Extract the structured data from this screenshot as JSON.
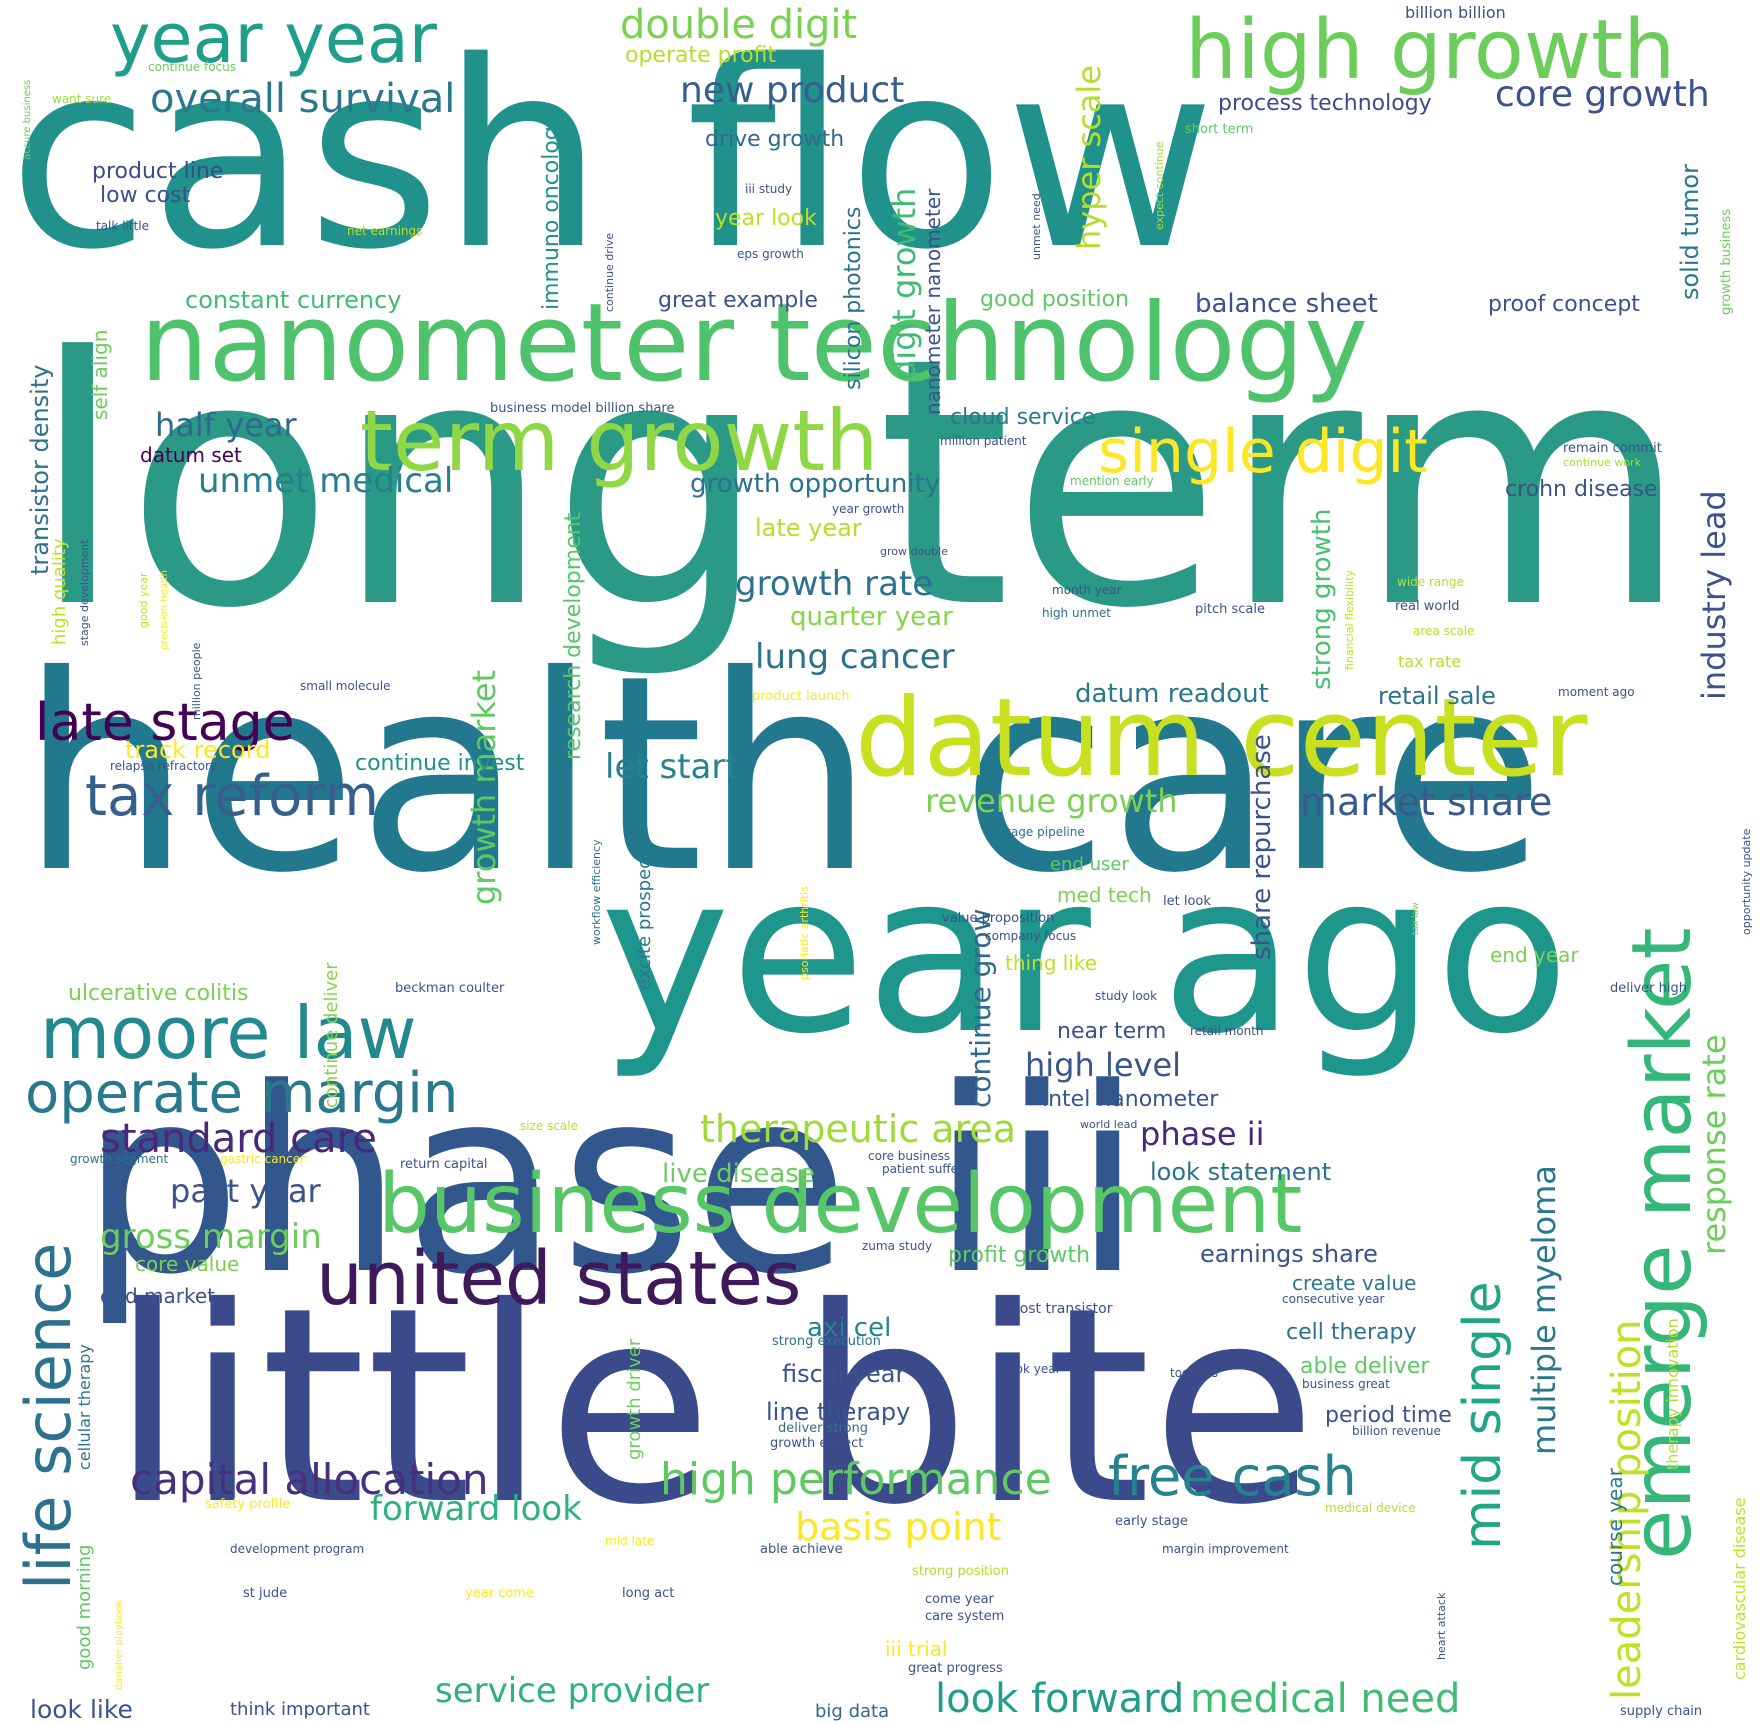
{
  "words": [
    {
      "id": "cash-flow",
      "text": "cash flow",
      "color": "#21918c"
    },
    {
      "id": "long-term",
      "text": "long term",
      "color": "#2a9a87"
    },
    {
      "id": "health-care",
      "text": "health care",
      "color": "#22798e"
    },
    {
      "id": "phase-iii",
      "text": "phase iii",
      "color": "#31578d"
    },
    {
      "id": "little-bite",
      "text": "little bite",
      "color": "#3b4a8a"
    },
    {
      "id": "year-ago",
      "text": "year ago",
      "color": "#1f968b"
    },
    {
      "id": "nanometer-technology",
      "text": "nanometer technology",
      "color": "#4ec36b"
    },
    {
      "id": "datum-center",
      "text": "datum center",
      "color": "#c8e020"
    },
    {
      "id": "high-growth",
      "text": "high growth",
      "color": "#6ccd5a"
    },
    {
      "id": "term-growth",
      "text": "term growth",
      "color": "#8fd744"
    },
    {
      "id": "year-year",
      "text": "year year",
      "color": "#1f9e89"
    },
    {
      "id": "single-digit",
      "text": "single digit",
      "color": "#fde725"
    },
    {
      "id": "business-development",
      "text": "business development",
      "color": "#56c667"
    },
    {
      "id": "united-states",
      "text": "united states",
      "color": "#3e1a5b"
    },
    {
      "id": "moore-law",
      "text": "moore law",
      "color": "#23898e"
    },
    {
      "id": "operate-margin",
      "text": "operate margin",
      "color": "#2a788e"
    },
    {
      "id": "emerge-market",
      "text": "emerge market",
      "color": "#35b779"
    },
    {
      "id": "late-stage",
      "text": "late stage",
      "color": "#440154"
    },
    {
      "id": "tax-reform",
      "text": "tax reform",
      "color": "#355f8d"
    },
    {
      "id": "life-science",
      "text": "life science",
      "color": "#2c728e"
    },
    {
      "id": "free-cash",
      "text": "free cash",
      "color": "#26828e"
    },
    {
      "id": "capital-allocation",
      "text": "capital allocation",
      "color": "#46307e"
    },
    {
      "id": "high-performance",
      "text": "high performance",
      "color": "#5ec962"
    },
    {
      "id": "mid-single",
      "text": "mid single",
      "color": "#21a685"
    },
    {
      "id": "double-digit",
      "text": "double digit",
      "color": "#7ad151"
    },
    {
      "id": "overall-survival",
      "text": "overall survival",
      "color": "#2a788e"
    },
    {
      "id": "new-product",
      "text": "new product",
      "color": "#355f8d"
    },
    {
      "id": "core-growth",
      "text": "core growth",
      "color": "#3b528b"
    },
    {
      "id": "standard-care",
      "text": "standard care",
      "color": "#482878"
    },
    {
      "id": "look-forward",
      "text": "look forward",
      "color": "#1f9e89"
    },
    {
      "id": "medical-need",
      "text": "medical need",
      "color": "#3fbc73"
    },
    {
      "id": "service-provider",
      "text": "service provider",
      "color": "#2db27d"
    },
    {
      "id": "look-like",
      "text": "look like",
      "color": "#3b528b"
    },
    {
      "id": "half-year",
      "text": "half year",
      "color": "#31688e"
    },
    {
      "id": "unmet-medical",
      "text": "unmet medical",
      "color": "#277f8e"
    },
    {
      "id": "growth-rate",
      "text": "growth rate",
      "color": "#2c728e"
    },
    {
      "id": "lung-cancer",
      "text": "lung cancer",
      "color": "#2c728e"
    },
    {
      "id": "market-share",
      "text": "market share",
      "color": "#38598c"
    },
    {
      "id": "revenue-growth",
      "text": "revenue growth",
      "color": "#7ad151"
    },
    {
      "id": "let-start",
      "text": "let start",
      "color": "#26828e"
    },
    {
      "id": "therapeutic-area",
      "text": "therapeutic area",
      "color": "#a0da39"
    },
    {
      "id": "phase-ii",
      "text": "phase ii",
      "color": "#482878"
    },
    {
      "id": "high-level",
      "text": "high level",
      "color": "#39568c"
    },
    {
      "id": "past-year",
      "text": "past year",
      "color": "#3b528b"
    },
    {
      "id": "gross-margin",
      "text": "gross margin",
      "color": "#6ccd5a"
    },
    {
      "id": "forward-look",
      "text": "forward look",
      "color": "#2db27d"
    },
    {
      "id": "basis-point",
      "text": "basis point",
      "color": "#fde725"
    },
    {
      "id": "leadership-position",
      "text": "leadership position",
      "color": "#c2df23"
    },
    {
      "id": "multiple-myeloma",
      "text": "multiple myeloma",
      "color": "#2a788e"
    },
    {
      "id": "response-rate",
      "text": "response rate",
      "color": "#6ccd5a"
    },
    {
      "id": "industry-lead",
      "text": "industry lead",
      "color": "#3b528b"
    },
    {
      "id": "hyper-scale",
      "text": "hyper scale",
      "color": "#b5de2b"
    },
    {
      "id": "digit-growth",
      "text": "digit growth",
      "color": "#3fbc73"
    },
    {
      "id": "growth-market",
      "text": "growth market",
      "color": "#5ec962"
    },
    {
      "id": "immuno-oncology",
      "text": "immuno oncology",
      "color": "#21918c"
    },
    {
      "id": "silicon-photonics",
      "text": "silicon photonics",
      "color": "#2c728e"
    },
    {
      "id": "constant-currency",
      "text": "constant currency",
      "color": "#3fbc73"
    },
    {
      "id": "transistor-density",
      "text": "transistor density",
      "color": "#2c728e"
    },
    {
      "id": "continue-grow",
      "text": "continue grow",
      "color": "#31688e"
    },
    {
      "id": "share-repurchase",
      "text": "share repurchase",
      "color": "#3b528b"
    },
    {
      "id": "strong-growth",
      "text": "strong growth",
      "color": "#4ac16d"
    },
    {
      "id": "research-development",
      "text": "research development",
      "color": "#56c667"
    },
    {
      "id": "growth-opportunity",
      "text": "growth opportunity",
      "color": "#2c728e"
    },
    {
      "id": "balance-sheet",
      "text": "balance sheet",
      "color": "#3b528b"
    },
    {
      "id": "process-technology",
      "text": "process technology",
      "color": "#3e4a89"
    },
    {
      "id": "datum-readout",
      "text": "datum readout",
      "color": "#2a788e"
    },
    {
      "id": "retail-sale",
      "text": "retail sale",
      "color": "#2c728e"
    },
    {
      "id": "crohn-disease",
      "text": "crohn disease",
      "color": "#3b528b"
    },
    {
      "id": "quarter-year",
      "text": "quarter year",
      "color": "#86d549"
    },
    {
      "id": "late-year",
      "text": "late year",
      "color": "#b5de2b"
    },
    {
      "id": "cloud-service",
      "text": "cloud service",
      "color": "#2a788e"
    },
    {
      "id": "drive-growth",
      "text": "drive growth",
      "color": "#31688e"
    },
    {
      "id": "great-example",
      "text": "great example",
      "color": "#3b528b"
    },
    {
      "id": "good-position",
      "text": "good position",
      "color": "#5ec962"
    },
    {
      "id": "proof-concept",
      "text": "proof concept",
      "color": "#3b528b"
    },
    {
      "id": "solid-tumor",
      "text": "solid tumor",
      "color": "#2a788e"
    },
    {
      "id": "product-line",
      "text": "product line",
      "color": "#3e4a89"
    },
    {
      "id": "low-cost",
      "text": "low cost",
      "color": "#3b528b"
    },
    {
      "id": "year-look",
      "text": "year look",
      "color": "#c2df23"
    },
    {
      "id": "operate-profit",
      "text": "operate profit",
      "color": "#b5de2b"
    },
    {
      "id": "nanometer-nanometer",
      "text": "nanometer nanometer",
      "color": "#3b528b"
    },
    {
      "id": "earnings-share",
      "text": "earnings share",
      "color": "#3b528b"
    },
    {
      "id": "look-statement",
      "text": "look statement",
      "color": "#2c728e"
    },
    {
      "id": "intel-nanometer",
      "text": "intel nanometer",
      "color": "#39568c"
    },
    {
      "id": "near-term",
      "text": "near term",
      "color": "#3b528b"
    },
    {
      "id": "live-disease",
      "text": "live disease",
      "color": "#6ccd5a"
    },
    {
      "id": "profit-growth",
      "text": "profit growth",
      "color": "#5ec962"
    },
    {
      "id": "cell-therapy",
      "text": "cell therapy",
      "color": "#2c728e"
    },
    {
      "id": "able-deliver",
      "text": "able deliver",
      "color": "#5ec962"
    },
    {
      "id": "period-time",
      "text": "period time",
      "color": "#3b528b"
    },
    {
      "id": "fiscal-year",
      "text": "fiscal year",
      "color": "#3b528b"
    },
    {
      "id": "line-therapy",
      "text": "line therapy",
      "color": "#39568c"
    },
    {
      "id": "axi-cel",
      "text": "axi cel",
      "color": "#26828e"
    },
    {
      "id": "create-value",
      "text": "create value",
      "color": "#2a788e"
    },
    {
      "id": "continue-invest",
      "text": "continue invest",
      "color": "#21918c"
    },
    {
      "id": "track-record",
      "text": "track record",
      "color": "#fde725"
    },
    {
      "id": "ulcerative-colitis",
      "text": "ulcerative colitis",
      "color": "#7ad151"
    },
    {
      "id": "core-value",
      "text": "core value",
      "color": "#7ad151"
    },
    {
      "id": "end-market",
      "text": "end market",
      "color": "#3b528b"
    },
    {
      "id": "datum-set",
      "text": "datum set",
      "color": "#440154"
    },
    {
      "id": "self-align",
      "text": "self align",
      "color": "#6ccd5a"
    },
    {
      "id": "high-quality",
      "text": "high quality",
      "color": "#c2df23"
    },
    {
      "id": "end-user",
      "text": "end user",
      "color": "#5ec962"
    },
    {
      "id": "med-tech",
      "text": "med tech",
      "color": "#7ad151"
    },
    {
      "id": "thing-like",
      "text": "thing like",
      "color": "#c2df23"
    },
    {
      "id": "end-year",
      "text": "end year",
      "color": "#7ad151"
    },
    {
      "id": "continue-deliver",
      "text": "continue deliver",
      "color": "#86d549"
    },
    {
      "id": "excite-prospect",
      "text": "excite prospect",
      "color": "#2a788e"
    },
    {
      "id": "growth-driver",
      "text": "growth driver",
      "color": "#6ccd5a"
    },
    {
      "id": "course-year",
      "text": "course year",
      "color": "#2a788e"
    },
    {
      "id": "therapy-innovation",
      "text": "therapy innovation",
      "color": "#b5de2b"
    },
    {
      "id": "cardiovascular-disease",
      "text": "cardiovascular disease",
      "color": "#c2df23"
    },
    {
      "id": "good-morning",
      "text": "good morning",
      "color": "#5ec962"
    },
    {
      "id": "cellular-therapy",
      "text": "cellular therapy",
      "color": "#2c728e"
    },
    {
      "id": "big-data",
      "text": "big data",
      "color": "#31688e"
    },
    {
      "id": "think-important",
      "text": "think important",
      "color": "#3b528b"
    },
    {
      "id": "iii-trial",
      "text": "iii trial",
      "color": "#fde725"
    },
    {
      "id": "continue-focus",
      "text": "continue focus",
      "color": "#6ccd5a"
    },
    {
      "id": "want-sure",
      "text": "want sure",
      "color": "#a0da39"
    },
    {
      "id": "accure-business",
      "text": "accure business",
      "color": "#6ccd5a"
    },
    {
      "id": "talk-little",
      "text": "talk little",
      "color": "#3b528b"
    },
    {
      "id": "net-earnings",
      "text": "net earnings",
      "color": "#b5de2b"
    },
    {
      "id": "continue-drive",
      "text": "continue drive",
      "color": "#3b528b"
    },
    {
      "id": "iii-study",
      "text": "iii study",
      "color": "#3b528b"
    },
    {
      "id": "eps-growth",
      "text": "eps growth",
      "color": "#39568c"
    },
    {
      "id": "billion-billion",
      "text": "billion billion",
      "color": "#3b528b"
    },
    {
      "id": "short-term",
      "text": "short term",
      "color": "#5ec962"
    },
    {
      "id": "unmet-need",
      "text": "unmet need",
      "color": "#3b528b"
    },
    {
      "id": "expect-continue",
      "text": "expect continue",
      "color": "#a0da39"
    },
    {
      "id": "growth-business",
      "text": "growth business",
      "color": "#6ccd5a"
    },
    {
      "id": "business-model-billion-share",
      "text": "business model billion share",
      "color": "#3b528b"
    },
    {
      "id": "million-patient",
      "text": "million patient",
      "color": "#3b528b"
    },
    {
      "id": "remain-commit",
      "text": "remain commit",
      "color": "#3b528b"
    },
    {
      "id": "continue-work",
      "text": "continue work",
      "color": "#a0da39"
    },
    {
      "id": "mention-early",
      "text": "mention early",
      "color": "#5ec962"
    },
    {
      "id": "year-growth",
      "text": "year growth",
      "color": "#3b528b"
    },
    {
      "id": "grow-double",
      "text": "grow double",
      "color": "#3b528b"
    },
    {
      "id": "month-year",
      "text": "month year",
      "color": "#3b528b"
    },
    {
      "id": "high-unmet",
      "text": "high unmet",
      "color": "#2c728e"
    },
    {
      "id": "pitch-scale",
      "text": "pitch scale",
      "color": "#3b528b"
    },
    {
      "id": "real-world",
      "text": "real world",
      "color": "#3b528b"
    },
    {
      "id": "wide-range",
      "text": "wide range",
      "color": "#b5de2b"
    },
    {
      "id": "area-scale",
      "text": "area scale",
      "color": "#b5de2b"
    },
    {
      "id": "tax-rate",
      "text": "tax rate",
      "color": "#b5de2b"
    },
    {
      "id": "financial-flexibility",
      "text": "financial flexibility",
      "color": "#c2df23"
    },
    {
      "id": "precision-health",
      "text": "precision health",
      "color": "#fde725"
    },
    {
      "id": "good-year",
      "text": "good year",
      "color": "#c2df23"
    },
    {
      "id": "stage-development",
      "text": "stage development",
      "color": "#3b528b"
    },
    {
      "id": "million-people",
      "text": "million people",
      "color": "#3b528b"
    },
    {
      "id": "small-molecule",
      "text": "small molecule",
      "color": "#3b528b"
    },
    {
      "id": "relapse-refractory",
      "text": "relapse refractory",
      "color": "#3b528b"
    },
    {
      "id": "product-launch",
      "text": "product launch",
      "color": "#fde725"
    },
    {
      "id": "moment-ago",
      "text": "moment ago",
      "color": "#3b528b"
    },
    {
      "id": "stage-pipeline",
      "text": "stage pipeline",
      "color": "#2c728e"
    },
    {
      "id": "let-look",
      "text": "let look",
      "color": "#3b528b"
    },
    {
      "id": "value-proposition",
      "text": "value proposition",
      "color": "#3b528b"
    },
    {
      "id": "company-focus",
      "text": "company focus",
      "color": "#3b528b"
    },
    {
      "id": "workflow-efficiency",
      "text": "workflow efficiency",
      "color": "#2c728e"
    },
    {
      "id": "psoriatic-arthritis",
      "text": "psoriatic arthritis",
      "color": "#fde725"
    },
    {
      "id": "tax-law",
      "text": "tax law",
      "color": "#7ad151"
    },
    {
      "id": "opportunity-update",
      "text": "opportunity update",
      "color": "#3b528b"
    },
    {
      "id": "beckman-coulter",
      "text": "beckman coulter",
      "color": "#3b528b"
    },
    {
      "id": "study-look",
      "text": "study look",
      "color": "#3b528b"
    },
    {
      "id": "retail-month",
      "text": "retail month",
      "color": "#3b528b"
    },
    {
      "id": "deliver-high",
      "text": "deliver high",
      "color": "#3b528b"
    },
    {
      "id": "world-lead",
      "text": "world lead",
      "color": "#3b528b"
    },
    {
      "id": "size-scale",
      "text": "size scale",
      "color": "#b5de2b"
    },
    {
      "id": "growth-segment",
      "text": "growth segment",
      "color": "#2c728e"
    },
    {
      "id": "gastric-cancer",
      "text": "gastric cancer",
      "color": "#fde725"
    },
    {
      "id": "return-capital",
      "text": "return capital",
      "color": "#3b528b"
    },
    {
      "id": "core-business",
      "text": "core business",
      "color": "#3b528b"
    },
    {
      "id": "patient-suffer",
      "text": "patient suffer",
      "color": "#3b528b"
    },
    {
      "id": "zuma-study",
      "text": "zuma study",
      "color": "#3b528b"
    },
    {
      "id": "consecutive-year",
      "text": "consecutive year",
      "color": "#3b528b"
    },
    {
      "id": "cost-transistor",
      "text": "cost transistor",
      "color": "#3b528b"
    },
    {
      "id": "strong-execution",
      "text": "strong execution",
      "color": "#2c728e"
    },
    {
      "id": "look-year",
      "text": "look year",
      "color": "#3b528b"
    },
    {
      "id": "tool-dbs",
      "text": "tool dbs",
      "color": "#3b528b"
    },
    {
      "id": "business-great",
      "text": "business great",
      "color": "#3b528b"
    },
    {
      "id": "deliver-strong",
      "text": "deliver strong",
      "color": "#2c728e"
    },
    {
      "id": "growth-expect",
      "text": "growth expect",
      "color": "#3b528b"
    },
    {
      "id": "billion-revenue",
      "text": "billion revenue",
      "color": "#3b528b"
    },
    {
      "id": "safety-profile",
      "text": "safety profile",
      "color": "#fde725"
    },
    {
      "id": "development-program",
      "text": "development program",
      "color": "#3b528b"
    },
    {
      "id": "mid-late",
      "text": "mid late",
      "color": "#fde725"
    },
    {
      "id": "able-achieve",
      "text": "able achieve",
      "color": "#3b528b"
    },
    {
      "id": "early-stage",
      "text": "early stage",
      "color": "#3b528b"
    },
    {
      "id": "medical-device",
      "text": "medical device",
      "color": "#b5de2b"
    },
    {
      "id": "margin-improvement",
      "text": "margin improvement",
      "color": "#3b528b"
    },
    {
      "id": "strong-position",
      "text": "strong position",
      "color": "#b5de2b"
    },
    {
      "id": "heart-attack",
      "text": "heart attack",
      "color": "#3b528b"
    },
    {
      "id": "danaher-playbook",
      "text": "danaher playbook",
      "color": "#fde725"
    },
    {
      "id": "st-jude",
      "text": "st jude",
      "color": "#3b528b"
    },
    {
      "id": "year-come",
      "text": "year come",
      "color": "#fde725"
    },
    {
      "id": "long-act",
      "text": "long act",
      "color": "#3b528b"
    },
    {
      "id": "come-year",
      "text": "come year",
      "color": "#3b528b"
    },
    {
      "id": "care-system",
      "text": "care system",
      "color": "#3b528b"
    },
    {
      "id": "great-progress",
      "text": "great progress",
      "color": "#3b528b"
    },
    {
      "id": "supply-chain",
      "text": "supply chain",
      "color": "#3b528b"
    }
  ]
}
